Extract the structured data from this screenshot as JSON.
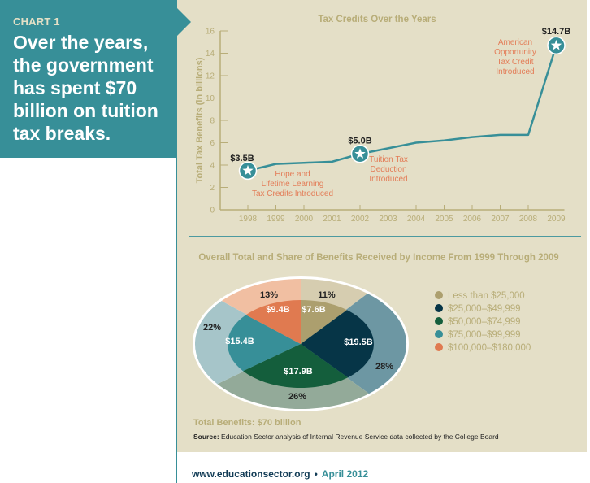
{
  "callout": {
    "label": "CHART 1",
    "headline": "Over the years, the government has spent $70 billion on tuition tax breaks."
  },
  "colors": {
    "teal": "#378f98",
    "panel": "#e4dfc7",
    "axis": "#b8ad78",
    "annotation": "#e37d58",
    "line": "#378f98"
  },
  "chart_data": [
    {
      "type": "line",
      "title": "Tax Credits Over the Years",
      "xlabel": "",
      "ylabel": "Total Tax Benefits (in billions)",
      "x": [
        "1998",
        "1999",
        "2000",
        "2001",
        "2002",
        "2003",
        "2004",
        "2005",
        "2006",
        "2007",
        "2008",
        "2009"
      ],
      "series": [
        {
          "name": "Total Tax Benefits",
          "values": [
            3.5,
            4.1,
            4.2,
            4.3,
            5.0,
            5.5,
            6.0,
            6.2,
            6.5,
            6.7,
            6.7,
            14.7
          ]
        }
      ],
      "ylim": [
        0,
        16
      ],
      "yticks": [
        0,
        2,
        4,
        6,
        8,
        10,
        12,
        14,
        16
      ],
      "grid": false,
      "annotations": [
        {
          "x": "1998",
          "value_label": "$3.5B",
          "text": [
            "Hope and",
            "Lifetime Learning",
            "Tax Credits Introduced"
          ]
        },
        {
          "x": "2002",
          "value_label": "$5.0B",
          "text": [
            "Tuition Tax",
            "Deduction",
            "Introduced"
          ]
        },
        {
          "x": "2009",
          "value_label": "$14.7B",
          "text": [
            "American",
            "Opportunity",
            "Tax Credit",
            "Introduced"
          ]
        }
      ]
    },
    {
      "type": "pie",
      "title": "Overall Total and Share of Benefits Received by Income From 1999 Through 2009",
      "categories": [
        "Less than $25,000",
        "$25,000–$49,999",
        "$50,000–$74,999",
        "$75,000–$99,999",
        "$100,000–$180,000"
      ],
      "values": [
        7.6,
        19.5,
        17.9,
        15.4,
        9.4
      ],
      "value_labels": [
        "$7.6B",
        "$19.5B",
        "$17.9B",
        "$15.4B",
        "$9.4B"
      ],
      "percent_labels": [
        "11%",
        "28%",
        "26%",
        "22%",
        "13%"
      ],
      "colors": [
        "#ac9f6e",
        "#063547",
        "#145e3c",
        "#378f98",
        "#e07a50"
      ],
      "outer_colors": [
        "#d6cdb0",
        "#6d97a3",
        "#93aa99",
        "#a6c5c9",
        "#f1bfa2"
      ],
      "legend": "right",
      "total_label": "Total Benefits: $70 billion"
    }
  ],
  "source": {
    "label": "Source:",
    "text": "Education Sector analysis of Internal Revenue Service data collected by the College Board"
  },
  "footer": {
    "url": "www.educationsector.org",
    "separator": "•",
    "date": "April 2012"
  }
}
